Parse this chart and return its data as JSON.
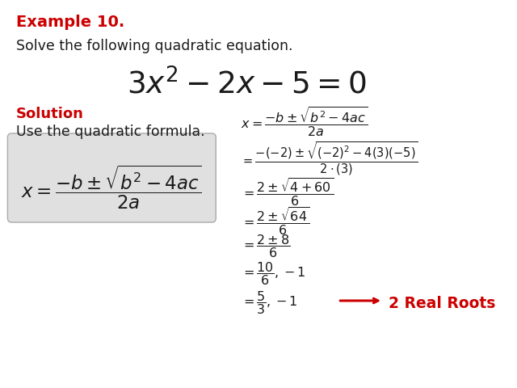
{
  "bg_color": "#ffffff",
  "red_color": "#cc0000",
  "black_color": "#1a1a1a",
  "gray_box_color": "#e8e8e8",
  "example_label": "Example 10.",
  "intro_text": "Solve the following quadratic equation.",
  "solution_label": "Solution",
  "period": ".",
  "formula_text": "Use the quadratic formula.",
  "roots_label": "2 Real Roots",
  "fig_width": 6.4,
  "fig_height": 4.8,
  "dpi": 100
}
